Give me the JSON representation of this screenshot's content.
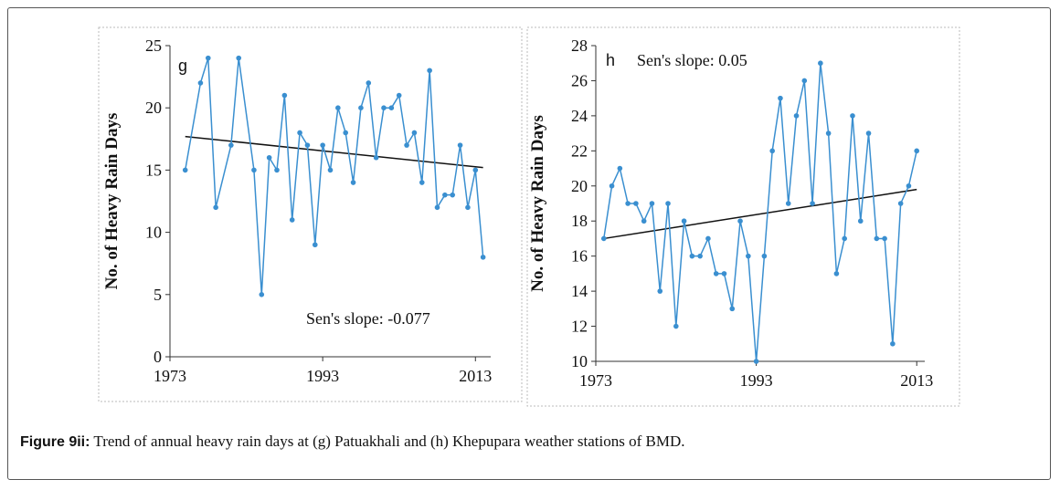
{
  "chart_data": [
    {
      "type": "line",
      "label": "g",
      "annotation": "Sen's slope: -0.077",
      "ylabel": "No. of Heavy Rain Days",
      "x": [
        1975,
        1977,
        1978,
        1979,
        1981,
        1982,
        1984,
        1985,
        1986,
        1987,
        1988,
        1989,
        1990,
        1991,
        1992,
        1993,
        1994,
        1995,
        1996,
        1997,
        1998,
        1999,
        2000,
        2001,
        2002,
        2003,
        2004,
        2005,
        2006,
        2007,
        2008,
        2009,
        2010,
        2011,
        2012,
        2013,
        2014
      ],
      "series": [
        {
          "color": "#3a8fd0",
          "values": [
            15,
            22,
            24,
            12,
            17,
            24,
            15,
            5,
            16,
            15,
            21,
            11,
            18,
            17,
            9,
            17,
            15,
            20,
            18,
            14,
            20,
            22,
            16,
            20,
            20,
            21,
            17,
            18,
            14,
            23,
            12,
            13,
            13,
            17,
            12,
            15,
            8
          ]
        }
      ],
      "trend": {
        "color": "#111111",
        "x": [
          1975,
          2014
        ],
        "values": [
          17.7,
          15.2
        ]
      },
      "xlim": [
        1973,
        2015
      ],
      "xticks": [
        1973,
        1993,
        2013
      ],
      "ylim": [
        0,
        25
      ],
      "yticks": [
        0,
        5,
        10,
        15,
        20,
        25
      ]
    },
    {
      "type": "line",
      "label": "h",
      "annotation": "Sen's slope: 0.05",
      "ylabel": "No. of Heavy Rain Days",
      "x": [
        1974,
        1975,
        1976,
        1977,
        1978,
        1979,
        1980,
        1981,
        1982,
        1983,
        1984,
        1985,
        1986,
        1987,
        1988,
        1989,
        1990,
        1991,
        1992,
        1993,
        1994,
        1995,
        1996,
        1997,
        1998,
        1999,
        2000,
        2001,
        2002,
        2003,
        2004,
        2005,
        2006,
        2007,
        2008,
        2009,
        2010,
        2011,
        2012,
        2013
      ],
      "series": [
        {
          "color": "#3a8fd0",
          "values": [
            17,
            20,
            21,
            19,
            19,
            18,
            19,
            14,
            19,
            12,
            18,
            16,
            16,
            17,
            15,
            15,
            13,
            18,
            16,
            10,
            16,
            22,
            25,
            19,
            24,
            26,
            19,
            27,
            23,
            15,
            17,
            24,
            18,
            23,
            17,
            17,
            11,
            19,
            20,
            22
          ]
        }
      ],
      "trend": {
        "color": "#111111",
        "x": [
          1974,
          2013
        ],
        "values": [
          17.0,
          19.8
        ]
      },
      "xlim": [
        1973,
        2014
      ],
      "xticks": [
        1973,
        1993,
        2013
      ],
      "ylim": [
        10,
        28
      ],
      "yticks": [
        10,
        12,
        14,
        16,
        18,
        20,
        22,
        24,
        26,
        28
      ]
    }
  ],
  "caption": {
    "label": "Figure 9ii:",
    "text": "Trend of annual heavy rain days at (g) Patuakhali and (h) Khepupara weather stations of BMD."
  }
}
